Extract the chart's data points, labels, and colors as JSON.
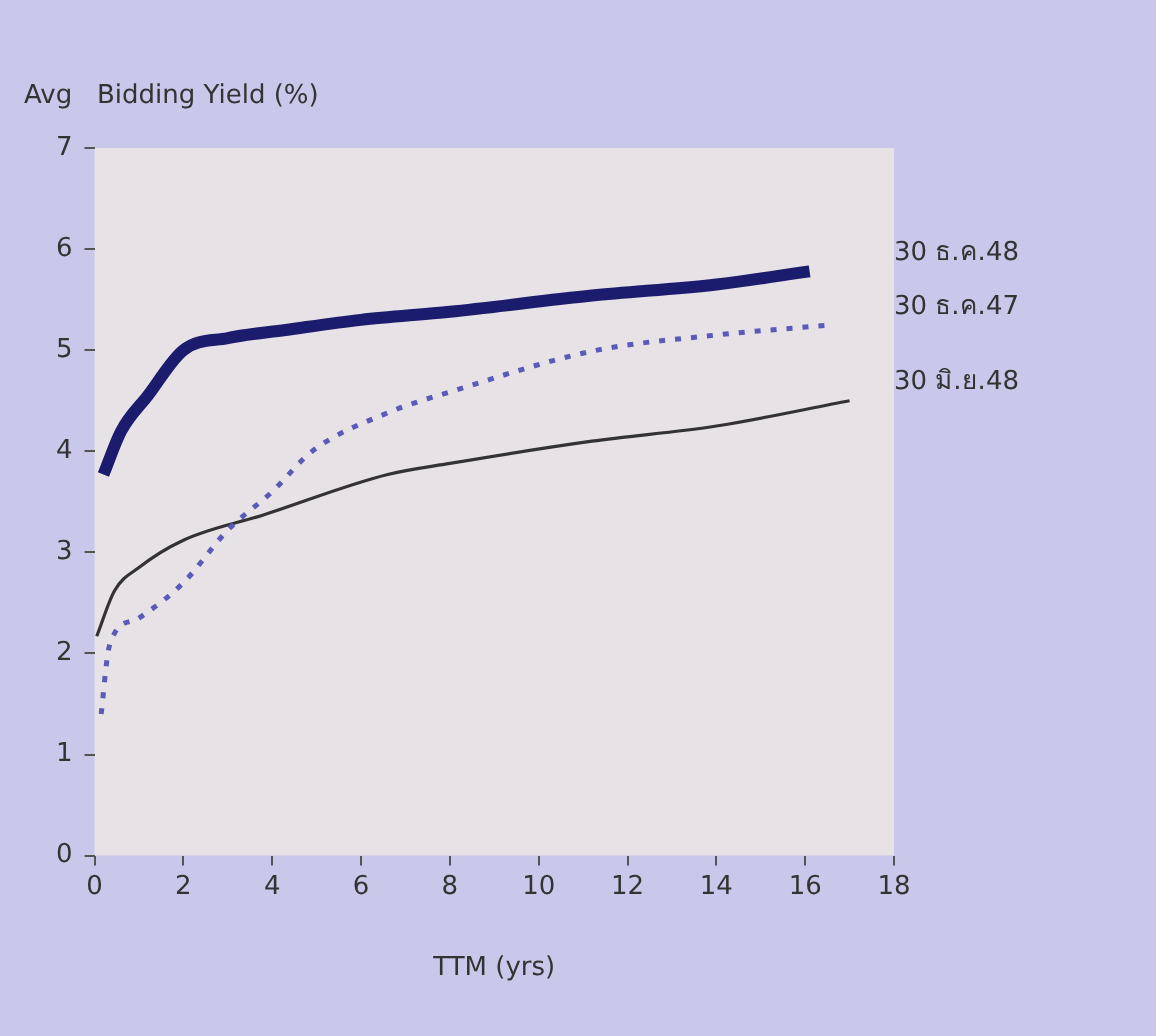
{
  "chart_data": {
    "type": "line",
    "ylabel": "Avg   Bidding Yield (%)",
    "xlabel": "TTM (yrs)",
    "xlim": [
      0,
      18
    ],
    "xticks": [
      0,
      2,
      4,
      6,
      8,
      10,
      12,
      14,
      16,
      18
    ],
    "ylim": [
      0,
      7
    ],
    "yticks": [
      0,
      1,
      2,
      3,
      4,
      5,
      6,
      7
    ],
    "grid": false,
    "marker": "none",
    "series": [
      {
        "name": "30 ธ.ค.48",
        "color": "#1c1c6e",
        "line_style": "solid",
        "x": [
          0.2,
          0.6,
          1.2,
          2,
          3,
          4.3,
          6,
          8,
          11.2,
          14,
          16.1
        ],
        "values": [
          3.77,
          4.2,
          4.55,
          5.0,
          5.12,
          5.2,
          5.3,
          5.38,
          5.54,
          5.65,
          5.78
        ]
      },
      {
        "name": "30 ธ.ค.47",
        "color": "#5a5ab8",
        "line_style": "dotted",
        "x": [
          0.15,
          0.3,
          0.45,
          1,
          2,
          3,
          4,
          4.9,
          6.6,
          8.1,
          11.2,
          14,
          16.6
        ],
        "values": [
          1.4,
          2.0,
          2.2,
          2.35,
          2.7,
          3.22,
          3.6,
          4.0,
          4.38,
          4.6,
          4.99,
          5.15,
          5.25
        ]
      },
      {
        "name": "30 มิ.ย.48",
        "color": "#333333",
        "line_style": "solid",
        "x": [
          0.05,
          0.45,
          1,
          2,
          3.8,
          6.6,
          8,
          11.2,
          14,
          17
        ],
        "values": [
          2.17,
          2.62,
          2.85,
          3.12,
          3.37,
          3.77,
          3.88,
          4.1,
          4.25,
          4.5
        ]
      }
    ]
  }
}
